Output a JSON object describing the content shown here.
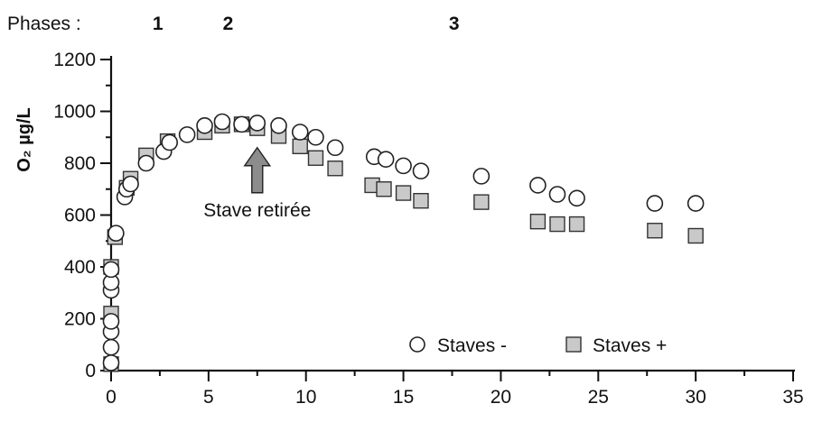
{
  "chart_data": {
    "type": "scatter",
    "title": "",
    "ylabel": "O₂ µg/L",
    "xlabel": "",
    "xlim": [
      0,
      35
    ],
    "ylim": [
      0,
      1200
    ],
    "xticks": [
      0,
      5,
      10,
      15,
      20,
      25,
      30,
      35
    ],
    "yticks": [
      0,
      200,
      400,
      600,
      800,
      1000,
      1200
    ],
    "grid": false,
    "legend_position": "bottom-right",
    "phases_label": "Phases :",
    "phases": [
      {
        "label": "1",
        "x": 2.4
      },
      {
        "label": "2",
        "x": 6.0
      },
      {
        "label": "3",
        "x": 17.6
      }
    ],
    "annotation": {
      "text": "Stave retirée",
      "x": 7.5,
      "y": 860
    },
    "series": [
      {
        "name": "Staves -",
        "marker": "circle",
        "points": [
          [
            0,
            30
          ],
          [
            0,
            90
          ],
          [
            0,
            150
          ],
          [
            0,
            190
          ],
          [
            0,
            310
          ],
          [
            0,
            340
          ],
          [
            0,
            390
          ],
          [
            0.25,
            530
          ],
          [
            0.7,
            670
          ],
          [
            0.8,
            700
          ],
          [
            1,
            720
          ],
          [
            1.8,
            800
          ],
          [
            2.7,
            845
          ],
          [
            3,
            880
          ],
          [
            3.9,
            910
          ],
          [
            4.8,
            945
          ],
          [
            5.7,
            960
          ],
          [
            6.7,
            950
          ],
          [
            7.5,
            955
          ],
          [
            8.6,
            945
          ],
          [
            9.7,
            920
          ],
          [
            10.5,
            900
          ],
          [
            11.5,
            860
          ],
          [
            13.5,
            825
          ],
          [
            14.1,
            815
          ],
          [
            15,
            790
          ],
          [
            15.9,
            770
          ],
          [
            19,
            750
          ],
          [
            21.9,
            715
          ],
          [
            22.9,
            680
          ],
          [
            23.9,
            665
          ],
          [
            27.9,
            645
          ],
          [
            30,
            645
          ]
        ]
      },
      {
        "name": "Staves +",
        "marker": "square",
        "points": [
          [
            0,
            25
          ],
          [
            0,
            220
          ],
          [
            0,
            400
          ],
          [
            0.2,
            515
          ],
          [
            0.8,
            705
          ],
          [
            1,
            740
          ],
          [
            1.8,
            830
          ],
          [
            2.9,
            885
          ],
          [
            4.8,
            920
          ],
          [
            5.7,
            945
          ],
          [
            6.7,
            950
          ],
          [
            7.5,
            935
          ],
          [
            8.6,
            905
          ],
          [
            9.7,
            865
          ],
          [
            10.5,
            820
          ],
          [
            11.5,
            780
          ],
          [
            13.4,
            715
          ],
          [
            14,
            700
          ],
          [
            15,
            685
          ],
          [
            15.9,
            655
          ],
          [
            19,
            650
          ],
          [
            21.9,
            575
          ],
          [
            22.9,
            565
          ],
          [
            23.9,
            565
          ],
          [
            27.9,
            540
          ],
          [
            30,
            520
          ]
        ]
      }
    ]
  }
}
